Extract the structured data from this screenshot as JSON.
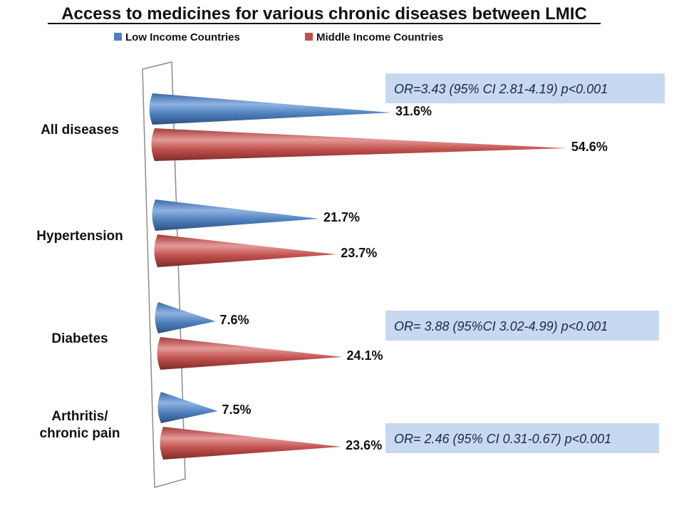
{
  "chart_data": {
    "type": "bar",
    "orientation": "horizontal",
    "title": "Access to medicines for various chronic diseases between LMIC",
    "xlim": [
      0,
      60
    ],
    "grid": false,
    "legend_position": "top",
    "categories": [
      "All diseases",
      "Hypertension",
      "Diabetes",
      "Arthritis/chronic pain"
    ],
    "series": [
      {
        "name": "Low Income Countries",
        "color": "#4f81bd",
        "values": [
          31.6,
          21.7,
          7.6,
          7.5
        ],
        "labels": [
          "31.6%",
          "21.7%",
          "7.6%",
          "7.5%"
        ]
      },
      {
        "name": "Middle Income Countries",
        "color": "#c0504d",
        "values": [
          54.6,
          23.7,
          24.1,
          23.6
        ],
        "labels": [
          "54.6%",
          "23.7%",
          "24.1%",
          "23.6%"
        ]
      }
    ],
    "annotations": [
      {
        "category": "All diseases",
        "text": "OR=3.43 (95% CI 2.81-4.19) p<0.001"
      },
      {
        "category": "Diabetes",
        "text": "OR= 3.88 (95%CI 3.02-4.99) p<0.001"
      },
      {
        "category": "Arthritis/chronic pain",
        "text": "OR= 2.46 (95% CI 0.31-0.67) p<0.001"
      }
    ],
    "annotation_box_color": "#c6d9f1"
  }
}
